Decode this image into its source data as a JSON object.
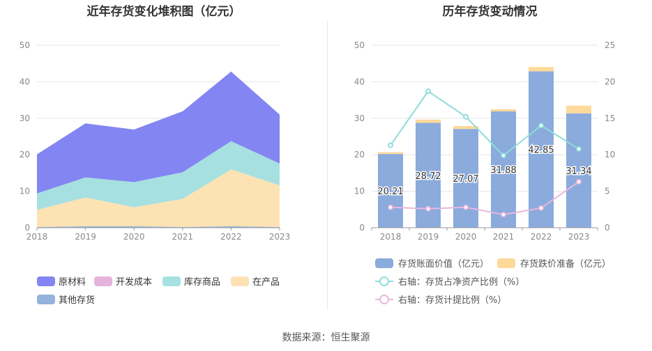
{
  "source": {
    "label": "数据来源：",
    "value": "恒生聚源"
  },
  "chart_data": [
    {
      "type": "area",
      "title": "近年存货变化堆积图（亿元）",
      "x": [
        "2018",
        "2019",
        "2020",
        "2021",
        "2022",
        "2023"
      ],
      "ylim": [
        0,
        50
      ],
      "yticks": [
        0,
        10,
        20,
        30,
        40,
        50
      ],
      "grid": true,
      "legend_position": "bottom",
      "series": [
        {
          "name": "原材料",
          "color": "#8385f2",
          "values": [
            10.7,
            14.8,
            14.4,
            16.7,
            19.1,
            13.4
          ]
        },
        {
          "name": "开发成本",
          "color": "#e5b4dc",
          "values": [
            0,
            0,
            0,
            0,
            0,
            0
          ]
        },
        {
          "name": "库存商品",
          "color": "#a6e0e0",
          "values": [
            4.5,
            5.5,
            6.9,
            7.3,
            7.7,
            6.0
          ]
        },
        {
          "name": "在产品",
          "color": "#fde2b4",
          "values": [
            4.7,
            7.9,
            5.2,
            7.7,
            15.6,
            11.4
          ]
        },
        {
          "name": "其他存货",
          "color": "#93b2dc",
          "values": [
            0.2,
            0.4,
            0.4,
            0.2,
            0.4,
            0.2
          ]
        }
      ]
    },
    {
      "type": "bar",
      "title": "历年存货变动情况",
      "categories": [
        "2018",
        "2019",
        "2020",
        "2021",
        "2022",
        "2023"
      ],
      "ylim": [
        0,
        50
      ],
      "yticks": [
        0,
        10,
        20,
        30,
        40,
        50
      ],
      "y2lim": [
        0,
        25
      ],
      "y2ticks": [
        0,
        5,
        10,
        15,
        20,
        25
      ],
      "grid": true,
      "legend_position": "bottom",
      "series": [
        {
          "name": "存货账面价值（亿元）",
          "color": "#8aabdc",
          "values": [
            20.21,
            28.72,
            27.07,
            31.88,
            42.85,
            31.34
          ],
          "labels": [
            "20.21",
            "28.72",
            "27.07",
            "31.88",
            "42.85",
            "31.34"
          ]
        },
        {
          "name": "存货跌价准备（亿元）",
          "color": "#fdd99a",
          "values": [
            0.5,
            0.9,
            0.8,
            0.6,
            1.2,
            2.1
          ]
        },
        {
          "name": "右轴：存货占净资产比例（%）",
          "color": "#8fdcdc",
          "axis": "right",
          "values": [
            11.3,
            18.7,
            15.2,
            9.9,
            14.0,
            10.8
          ]
        },
        {
          "name": "右轴：存货计提比例（%）",
          "color": "#e8b7de",
          "axis": "right",
          "values": [
            2.8,
            2.6,
            2.8,
            1.8,
            2.7,
            6.3
          ]
        }
      ]
    }
  ]
}
